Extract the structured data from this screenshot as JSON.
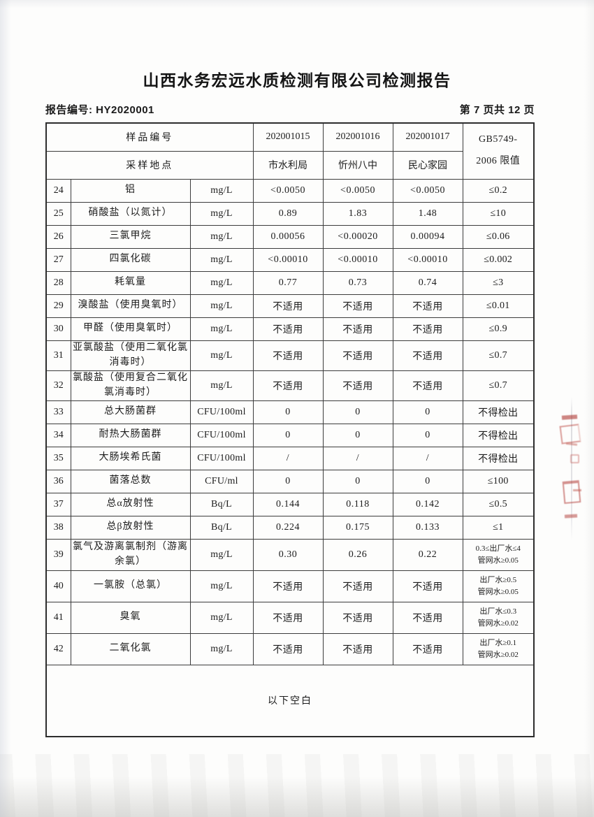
{
  "page": {
    "title": "山西水务宏远水质检测有限公司检测报告",
    "report_no": "报告编号: HY2020001",
    "page_indicator": "第 7 页共 12 页"
  },
  "table": {
    "header": {
      "sample_id_label": "样品编号",
      "location_label": "采样地点",
      "sample_ids": [
        "202001015",
        "202001016",
        "202001017"
      ],
      "locations": [
        "市水利局",
        "忻州八中",
        "民心家园"
      ],
      "limit_line1": "GB5749-",
      "limit_line2": "2006 限值"
    },
    "rows": [
      {
        "no": "24",
        "name": "铝",
        "unit": "mg/L",
        "v1": "<0.0050",
        "v2": "<0.0050",
        "v3": "<0.0050",
        "limit": "≤0.2"
      },
      {
        "no": "25",
        "name": "硝酸盐（以氮计）",
        "unit": "mg/L",
        "v1": "0.89",
        "v2": "1.83",
        "v3": "1.48",
        "limit": "≤10"
      },
      {
        "no": "26",
        "name": "三氯甲烷",
        "unit": "mg/L",
        "v1": "0.00056",
        "v2": "<0.00020",
        "v3": "0.00094",
        "limit": "≤0.06"
      },
      {
        "no": "27",
        "name": "四氯化碳",
        "unit": "mg/L",
        "v1": "<0.00010",
        "v2": "<0.00010",
        "v3": "<0.00010",
        "limit": "≤0.002"
      },
      {
        "no": "28",
        "name": "耗氧量",
        "unit": "mg/L",
        "v1": "0.77",
        "v2": "0.73",
        "v3": "0.74",
        "limit": "≤3"
      },
      {
        "no": "29",
        "name": "溴酸盐（使用臭氧时）",
        "unit": "mg/L",
        "v1": "不适用",
        "v2": "不适用",
        "v3": "不适用",
        "limit": "≤0.01"
      },
      {
        "no": "30",
        "name": "甲醛（使用臭氧时）",
        "unit": "mg/L",
        "v1": "不适用",
        "v2": "不适用",
        "v3": "不适用",
        "limit": "≤0.9"
      },
      {
        "no": "31",
        "name": "亚氯酸盐（使用二氧化氯消毒时）",
        "unit": "mg/L",
        "v1": "不适用",
        "v2": "不适用",
        "v3": "不适用",
        "limit": "≤0.7"
      },
      {
        "no": "32",
        "name": "氯酸盐（使用复合二氧化氯消毒时）",
        "unit": "mg/L",
        "v1": "不适用",
        "v2": "不适用",
        "v3": "不适用",
        "limit": "≤0.7"
      },
      {
        "no": "33",
        "name": "总大肠菌群",
        "unit": "CFU/100ml",
        "v1": "0",
        "v2": "0",
        "v3": "0",
        "limit": "不得检出"
      },
      {
        "no": "34",
        "name": "耐热大肠菌群",
        "unit": "CFU/100ml",
        "v1": "0",
        "v2": "0",
        "v3": "0",
        "limit": "不得检出"
      },
      {
        "no": "35",
        "name": "大肠埃希氏菌",
        "unit": "CFU/100ml",
        "v1": "/",
        "v2": "/",
        "v3": "/",
        "limit": "不得检出"
      },
      {
        "no": "36",
        "name": "菌落总数",
        "unit": "CFU/ml",
        "v1": "0",
        "v2": "0",
        "v3": "0",
        "limit": "≤100"
      },
      {
        "no": "37",
        "name": "总α放射性",
        "unit": "Bq/L",
        "v1": "0.144",
        "v2": "0.118",
        "v3": "0.142",
        "limit": "≤0.5"
      },
      {
        "no": "38",
        "name": "总β放射性",
        "unit": "Bq/L",
        "v1": "0.224",
        "v2": "0.175",
        "v3": "0.133",
        "limit": "≤1"
      },
      {
        "no": "39",
        "name": "氯气及游离氯制剂（游离余氯）",
        "unit": "mg/L",
        "v1": "0.30",
        "v2": "0.26",
        "v3": "0.22",
        "limit": "0.3≤出厂水≤4",
        "limit2": "管网水≥0.05"
      },
      {
        "no": "40",
        "name": "一氯胺（总氯）",
        "unit": "mg/L",
        "v1": "不适用",
        "v2": "不适用",
        "v3": "不适用",
        "limit": "出厂水≥0.5",
        "limit2": "管网水≥0.05"
      },
      {
        "no": "41",
        "name": "臭氧",
        "unit": "mg/L",
        "v1": "不适用",
        "v2": "不适用",
        "v3": "不适用",
        "limit": "出厂水≤0.3",
        "limit2": "管网水≥0.02"
      },
      {
        "no": "42",
        "name": "二氧化氯",
        "unit": "mg/L",
        "v1": "不适用",
        "v2": "不适用",
        "v3": "不适用",
        "limit": "出厂水≥0.1",
        "limit2": "管网水≥0.02"
      }
    ],
    "footer_note": "以下空白"
  },
  "decorations": {
    "stamp_color": "#ac2a22",
    "stamp_description": "partial red seal fragment at right page edge"
  }
}
